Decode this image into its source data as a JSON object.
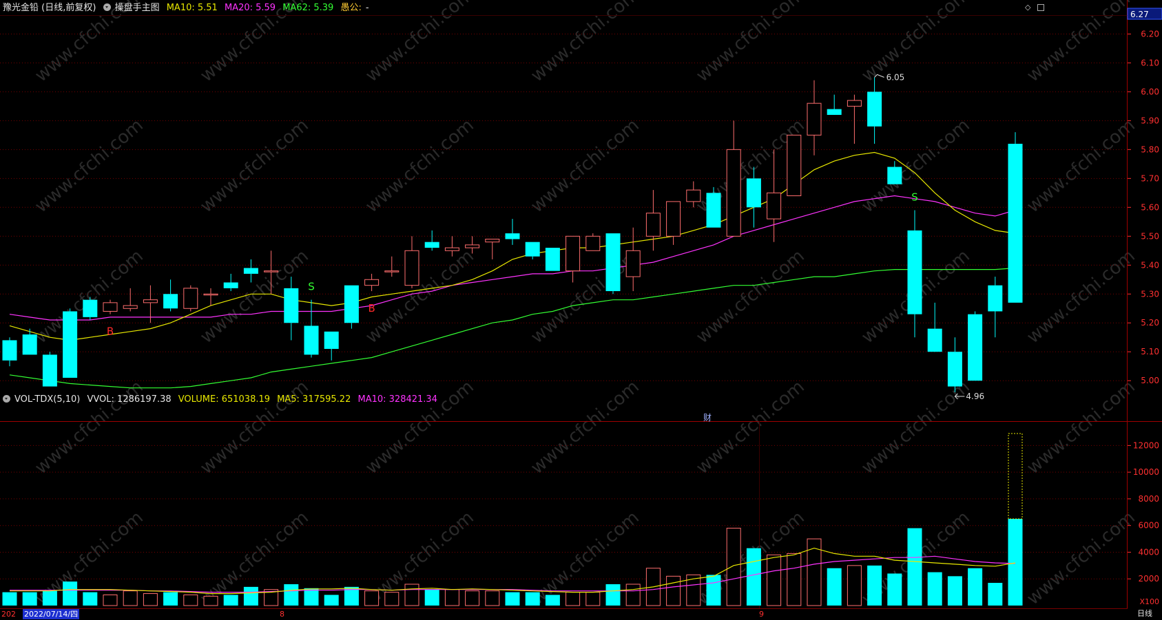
{
  "header": {
    "stock_title": "豫光金铅 (日线,前复权)",
    "indicator_name": "操盘手主图",
    "ma10": "MA10: 5.51",
    "ma20": "MA20: 5.59",
    "ma62": "MA62: 5.39",
    "extra_label": "愚公:",
    "extra_value": "-"
  },
  "vol_header": {
    "name": "VOL-TDX(5,10)",
    "vvol": "VVOL: 1286197.38",
    "volume": "VOLUME: 651038.19",
    "ma5": "MA5: 317595.22",
    "ma10": "MA10: 328421.34"
  },
  "price_axis": {
    "current_price": "6.27",
    "ticks": [
      "6.20",
      "6.10",
      "6.00",
      "5.90",
      "5.80",
      "5.70",
      "5.60",
      "5.50",
      "5.40",
      "5.30",
      "5.20",
      "5.10",
      "5.00"
    ]
  },
  "vol_axis": {
    "ticks": [
      "12000",
      "10000",
      "8000",
      "6000",
      "4000",
      "2000"
    ],
    "unit": "X100"
  },
  "bottom_bar": {
    "year_fragment": "202",
    "date": "2022/07/14/四",
    "month_aug": "8",
    "month_sep": "9",
    "period": "日线"
  },
  "annotations": {
    "high": "6.05",
    "low": "4.96",
    "finance_marker": "财",
    "signals": [
      {
        "label": "B",
        "color": "#ff2a2a",
        "index": 5
      },
      {
        "label": "S",
        "color": "#33ff33",
        "index": 15
      },
      {
        "label": "B",
        "color": "#ff2a2a",
        "index": 18
      },
      {
        "label": "S",
        "color": "#33ff33",
        "index": 45
      }
    ]
  },
  "watermark": "www.cfchi.com",
  "colors": {
    "up": "#ff6e6e",
    "down": "#00ffff",
    "ma10": "#e8e800",
    "ma20": "#ff33ff",
    "ma62": "#33ff33",
    "grid": "#7a0000",
    "axis_text": "#ff3030"
  },
  "chart_data": {
    "type": "candlestick",
    "price_range": [
      4.86,
      6.27
    ],
    "volume_range": [
      0,
      13000
    ],
    "candles": [
      {
        "o": 5.14,
        "h": 5.15,
        "l": 5.05,
        "c": 5.07
      },
      {
        "o": 5.16,
        "h": 5.18,
        "l": 5.09,
        "c": 5.09
      },
      {
        "o": 5.09,
        "h": 5.1,
        "l": 4.98,
        "c": 4.98
      },
      {
        "o": 5.24,
        "h": 5.25,
        "l": 5.01,
        "c": 5.01
      },
      {
        "o": 5.28,
        "h": 5.29,
        "l": 5.21,
        "c": 5.22
      },
      {
        "o": 5.24,
        "h": 5.28,
        "l": 5.23,
        "c": 5.27
      },
      {
        "o": 5.25,
        "h": 5.32,
        "l": 5.24,
        "c": 5.26
      },
      {
        "o": 5.27,
        "h": 5.33,
        "l": 5.2,
        "c": 5.28
      },
      {
        "o": 5.3,
        "h": 5.35,
        "l": 5.24,
        "c": 5.25
      },
      {
        "o": 5.25,
        "h": 5.33,
        "l": 5.24,
        "c": 5.32
      },
      {
        "o": 5.3,
        "h": 5.32,
        "l": 5.26,
        "c": 5.3
      },
      {
        "o": 5.34,
        "h": 5.37,
        "l": 5.31,
        "c": 5.32
      },
      {
        "o": 5.39,
        "h": 5.42,
        "l": 5.34,
        "c": 5.37
      },
      {
        "o": 5.38,
        "h": 5.45,
        "l": 5.3,
        "c": 5.38
      },
      {
        "o": 5.32,
        "h": 5.36,
        "l": 5.14,
        "c": 5.2
      },
      {
        "o": 5.19,
        "h": 5.28,
        "l": 5.08,
        "c": 5.09
      },
      {
        "o": 5.17,
        "h": 5.17,
        "l": 5.07,
        "c": 5.11
      },
      {
        "o": 5.33,
        "h": 5.33,
        "l": 5.18,
        "c": 5.2
      },
      {
        "o": 5.33,
        "h": 5.37,
        "l": 5.31,
        "c": 5.35
      },
      {
        "o": 5.38,
        "h": 5.43,
        "l": 5.36,
        "c": 5.38
      },
      {
        "o": 5.33,
        "h": 5.5,
        "l": 5.32,
        "c": 5.45
      },
      {
        "o": 5.48,
        "h": 5.52,
        "l": 5.45,
        "c": 5.46
      },
      {
        "o": 5.45,
        "h": 5.5,
        "l": 5.43,
        "c": 5.46
      },
      {
        "o": 5.46,
        "h": 5.5,
        "l": 5.44,
        "c": 5.47
      },
      {
        "o": 5.48,
        "h": 5.49,
        "l": 5.42,
        "c": 5.49
      },
      {
        "o": 5.51,
        "h": 5.56,
        "l": 5.47,
        "c": 5.49
      },
      {
        "o": 5.48,
        "h": 5.48,
        "l": 5.42,
        "c": 5.43
      },
      {
        "o": 5.46,
        "h": 5.46,
        "l": 5.38,
        "c": 5.38
      },
      {
        "o": 5.38,
        "h": 5.5,
        "l": 5.34,
        "c": 5.5
      },
      {
        "o": 5.45,
        "h": 5.51,
        "l": 5.45,
        "c": 5.5
      },
      {
        "o": 5.51,
        "h": 5.51,
        "l": 5.3,
        "c": 5.31
      },
      {
        "o": 5.36,
        "h": 5.53,
        "l": 5.31,
        "c": 5.45
      },
      {
        "o": 5.5,
        "h": 5.66,
        "l": 5.45,
        "c": 5.58
      },
      {
        "o": 5.5,
        "h": 5.62,
        "l": 5.47,
        "c": 5.62
      },
      {
        "o": 5.62,
        "h": 5.69,
        "l": 5.6,
        "c": 5.66
      },
      {
        "o": 5.65,
        "h": 5.67,
        "l": 5.53,
        "c": 5.53
      },
      {
        "o": 5.5,
        "h": 5.9,
        "l": 5.5,
        "c": 5.8
      },
      {
        "o": 5.7,
        "h": 5.74,
        "l": 5.53,
        "c": 5.6
      },
      {
        "o": 5.56,
        "h": 5.8,
        "l": 5.48,
        "c": 5.65
      },
      {
        "o": 5.64,
        "h": 5.85,
        "l": 5.64,
        "c": 5.85
      },
      {
        "o": 5.85,
        "h": 6.04,
        "l": 5.78,
        "c": 5.96
      },
      {
        "o": 5.94,
        "h": 5.99,
        "l": 5.93,
        "c": 5.92
      },
      {
        "o": 5.95,
        "h": 5.99,
        "l": 5.82,
        "c": 5.97
      },
      {
        "o": 6.0,
        "h": 6.05,
        "l": 5.82,
        "c": 5.88
      },
      {
        "o": 5.74,
        "h": 5.76,
        "l": 5.68,
        "c": 5.68
      },
      {
        "o": 5.52,
        "h": 5.59,
        "l": 5.15,
        "c": 5.23
      },
      {
        "o": 5.18,
        "h": 5.27,
        "l": 5.11,
        "c": 5.1
      },
      {
        "o": 5.1,
        "h": 5.15,
        "l": 4.96,
        "c": 4.98
      },
      {
        "o": 5.23,
        "h": 5.24,
        "l": 5.0,
        "c": 5.0
      },
      {
        "o": 5.33,
        "h": 5.36,
        "l": 5.15,
        "c": 5.24
      },
      {
        "o": 5.82,
        "h": 5.86,
        "l": 5.27,
        "c": 5.27
      }
    ],
    "ma10": [
      5.19,
      5.17,
      5.15,
      5.14,
      5.15,
      5.16,
      5.17,
      5.18,
      5.2,
      5.23,
      5.26,
      5.28,
      5.3,
      5.3,
      5.28,
      5.27,
      5.26,
      5.27,
      5.29,
      5.3,
      5.31,
      5.32,
      5.33,
      5.35,
      5.38,
      5.42,
      5.44,
      5.45,
      5.46,
      5.46,
      5.47,
      5.48,
      5.49,
      5.5,
      5.52,
      5.54,
      5.57,
      5.6,
      5.63,
      5.68,
      5.73,
      5.76,
      5.78,
      5.79,
      5.77,
      5.72,
      5.65,
      5.59,
      5.55,
      5.52,
      5.51
    ],
    "ma20": [
      5.23,
      5.22,
      5.21,
      5.21,
      5.21,
      5.22,
      5.22,
      5.22,
      5.22,
      5.22,
      5.22,
      5.23,
      5.23,
      5.24,
      5.24,
      5.24,
      5.24,
      5.25,
      5.26,
      5.28,
      5.3,
      5.31,
      5.33,
      5.34,
      5.35,
      5.36,
      5.37,
      5.37,
      5.38,
      5.38,
      5.39,
      5.4,
      5.41,
      5.43,
      5.45,
      5.47,
      5.5,
      5.52,
      5.54,
      5.56,
      5.58,
      5.6,
      5.62,
      5.63,
      5.64,
      5.63,
      5.62,
      5.6,
      5.58,
      5.57,
      5.59
    ],
    "ma62": [
      5.02,
      5.01,
      5.0,
      4.99,
      4.985,
      4.98,
      4.975,
      4.975,
      4.975,
      4.98,
      4.99,
      5.0,
      5.01,
      5.03,
      5.04,
      5.05,
      5.06,
      5.07,
      5.08,
      5.1,
      5.12,
      5.14,
      5.16,
      5.18,
      5.2,
      5.21,
      5.23,
      5.24,
      5.26,
      5.27,
      5.28,
      5.28,
      5.29,
      5.3,
      5.31,
      5.32,
      5.33,
      5.33,
      5.34,
      5.35,
      5.36,
      5.36,
      5.37,
      5.38,
      5.385,
      5.385,
      5.385,
      5.385,
      5.385,
      5.385,
      5.39
    ],
    "volume": [
      1000,
      1000,
      1100,
      1800,
      1000,
      800,
      1100,
      900,
      1000,
      800,
      700,
      800,
      1400,
      1200,
      1600,
      1300,
      800,
      1400,
      1100,
      1000,
      1600,
      1200,
      1200,
      1100,
      1100,
      1000,
      1000,
      800,
      1000,
      1000,
      1600,
      1600,
      2800,
      2200,
      2300,
      2300,
      5800,
      4300,
      3800,
      3900,
      5000,
      2800,
      3000,
      3000,
      2400,
      5800,
      2500,
      2200,
      2800,
      1700,
      6500
    ],
    "vol_ma5": [
      1100,
      1100,
      1100,
      1200,
      1200,
      1200,
      1150,
      1100,
      1050,
      1000,
      900,
      900,
      950,
      1000,
      1150,
      1250,
      1250,
      1300,
      1200,
      1150,
      1250,
      1300,
      1200,
      1250,
      1200,
      1150,
      1100,
      1050,
      1000,
      1000,
      1100,
      1200,
      1400,
      1700,
      2000,
      2200,
      3000,
      3300,
      3600,
      3800,
      4300,
      3900,
      3700,
      3700,
      3400,
      3300,
      3200,
      3100,
      3000,
      2950,
      3200
    ],
    "vol_ma10": [
      1150,
      1150,
      1150,
      1150,
      1150,
      1150,
      1150,
      1100,
      1100,
      1050,
      1000,
      1000,
      1000,
      1050,
      1100,
      1150,
      1150,
      1200,
      1200,
      1150,
      1200,
      1200,
      1200,
      1200,
      1200,
      1200,
      1150,
      1100,
      1100,
      1100,
      1100,
      1100,
      1200,
      1400,
      1550,
      1700,
      2000,
      2300,
      2600,
      2800,
      3100,
      3300,
      3400,
      3500,
      3600,
      3600,
      3700,
      3500,
      3300,
      3200,
      3150
    ]
  }
}
